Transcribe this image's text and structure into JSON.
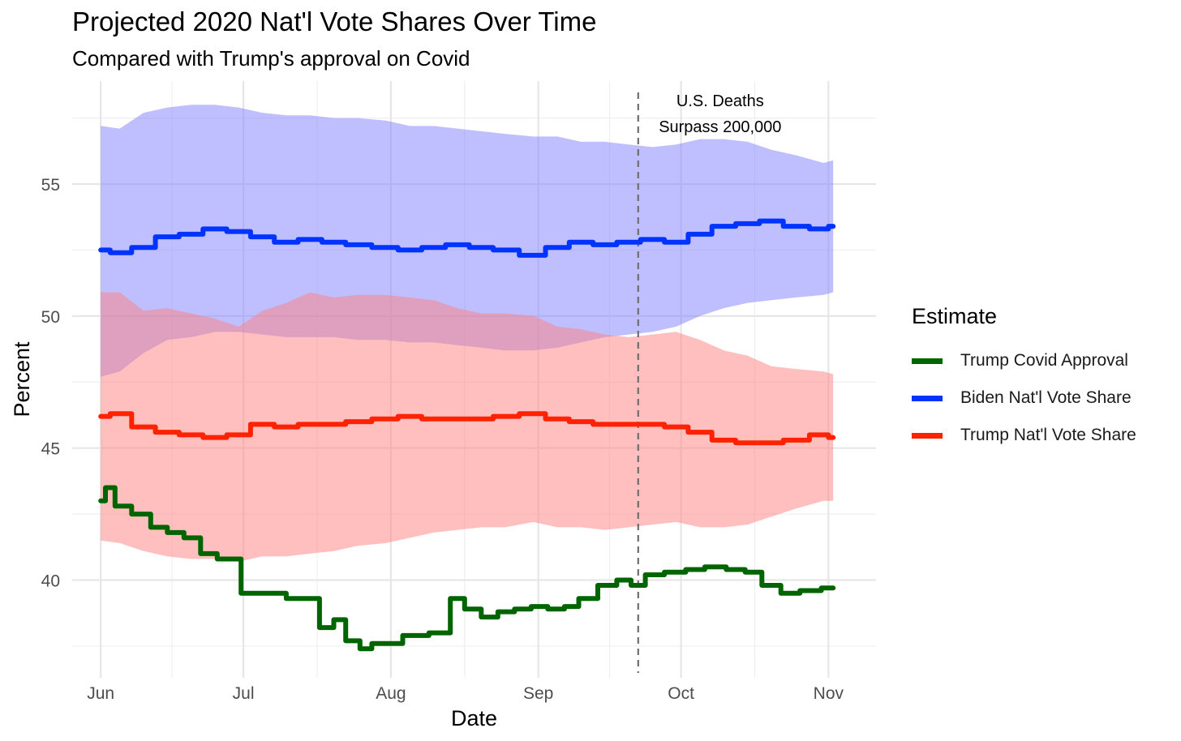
{
  "chart_data": {
    "type": "line",
    "title": "Projected 2020 Nat'l Vote Shares Over Time",
    "subtitle": "Compared with Trump's approval on Covid",
    "xlabel": "Date",
    "ylabel": "Percent",
    "x_ticks": [
      "Jun",
      "Jul",
      "Aug",
      "Sep",
      "Oct",
      "Nov"
    ],
    "x_tick_dates": [
      "2020-06-01",
      "2020-07-01",
      "2020-08-01",
      "2020-09-01",
      "2020-10-01",
      "2020-11-01"
    ],
    "y_ticks": [
      40,
      45,
      50,
      55
    ],
    "ylim": [
      36.3,
      58.9
    ],
    "xlim": [
      "2020-05-26",
      "2020-11-11"
    ],
    "grid": true,
    "legend": {
      "title": "Estimate",
      "position": "right",
      "entries": [
        "Trump Covid Approval",
        "Biden Nat'l Vote Share",
        "Trump Nat'l Vote Share"
      ]
    },
    "annotation": {
      "date": "2020-09-22",
      "lines": [
        "U.S. Deaths",
        "Surpass 200,000"
      ]
    },
    "colors": {
      "covid": "#006400",
      "biden": "#0033ff",
      "trump": "#ff2200",
      "biden_band": "#8080ff",
      "trump_band": "#ff8080"
    },
    "series": [
      {
        "name": "Trump Covid Approval",
        "x": [
          "2020-06-01",
          "2020-06-03",
          "2020-06-05",
          "2020-06-10",
          "2020-06-13",
          "2020-06-17",
          "2020-06-20",
          "2020-06-24",
          "2020-06-27",
          "2020-06-30",
          "2020-07-01",
          "2020-07-08",
          "2020-07-12",
          "2020-07-15",
          "2020-07-19",
          "2020-07-21",
          "2020-07-24",
          "2020-07-27",
          "2020-07-29",
          "2020-08-01",
          "2020-08-06",
          "2020-08-12",
          "2020-08-15",
          "2020-08-18",
          "2020-08-22",
          "2020-08-25",
          "2020-08-29",
          "2020-09-01",
          "2020-09-05",
          "2020-09-08",
          "2020-09-11",
          "2020-09-16",
          "2020-09-19",
          "2020-09-22",
          "2020-09-25",
          "2020-09-30",
          "2020-10-04",
          "2020-10-08",
          "2020-10-13",
          "2020-10-16",
          "2020-10-20",
          "2020-10-24",
          "2020-10-28",
          "2020-11-02"
        ],
        "values": [
          43.0,
          43.5,
          42.8,
          42.5,
          42.0,
          41.8,
          41.6,
          41.0,
          40.8,
          40.8,
          39.5,
          39.5,
          39.3,
          39.3,
          38.2,
          38.5,
          37.7,
          37.4,
          37.6,
          37.6,
          37.9,
          38.0,
          39.3,
          38.9,
          38.6,
          38.8,
          38.9,
          39.0,
          38.9,
          39.0,
          39.3,
          39.8,
          40.0,
          39.8,
          40.2,
          40.3,
          40.4,
          40.5,
          40.4,
          40.3,
          39.8,
          39.5,
          39.6,
          39.7
        ]
      },
      {
        "name": "Biden Nat'l Vote Share",
        "x": [
          "2020-06-01",
          "2020-06-05",
          "2020-06-10",
          "2020-06-15",
          "2020-06-20",
          "2020-06-25",
          "2020-06-30",
          "2020-07-05",
          "2020-07-10",
          "2020-07-15",
          "2020-07-20",
          "2020-07-25",
          "2020-07-31",
          "2020-08-05",
          "2020-08-10",
          "2020-08-15",
          "2020-08-20",
          "2020-08-25",
          "2020-08-31",
          "2020-09-05",
          "2020-09-10",
          "2020-09-15",
          "2020-09-20",
          "2020-09-25",
          "2020-09-30",
          "2020-10-05",
          "2020-10-10",
          "2020-10-15",
          "2020-10-20",
          "2020-10-25",
          "2020-10-31",
          "2020-11-02"
        ],
        "values": [
          52.5,
          52.4,
          52.6,
          53.0,
          53.1,
          53.3,
          53.2,
          53.0,
          52.8,
          52.9,
          52.8,
          52.7,
          52.6,
          52.5,
          52.6,
          52.7,
          52.6,
          52.5,
          52.3,
          52.6,
          52.8,
          52.7,
          52.8,
          52.9,
          52.8,
          53.1,
          53.4,
          53.5,
          53.6,
          53.4,
          53.3,
          53.4
        ]
      },
      {
        "name": "Trump Nat'l Vote Share",
        "x": [
          "2020-06-01",
          "2020-06-05",
          "2020-06-10",
          "2020-06-15",
          "2020-06-20",
          "2020-06-25",
          "2020-06-30",
          "2020-07-05",
          "2020-07-10",
          "2020-07-15",
          "2020-07-20",
          "2020-07-25",
          "2020-07-31",
          "2020-08-05",
          "2020-08-10",
          "2020-08-15",
          "2020-08-20",
          "2020-08-25",
          "2020-08-31",
          "2020-09-05",
          "2020-09-10",
          "2020-09-15",
          "2020-09-20",
          "2020-09-25",
          "2020-09-30",
          "2020-10-05",
          "2020-10-10",
          "2020-10-15",
          "2020-10-20",
          "2020-10-25",
          "2020-10-31",
          "2020-11-02"
        ],
        "values": [
          46.2,
          46.3,
          45.8,
          45.6,
          45.5,
          45.4,
          45.5,
          45.9,
          45.8,
          45.9,
          45.9,
          46.0,
          46.1,
          46.2,
          46.1,
          46.1,
          46.1,
          46.2,
          46.3,
          46.1,
          46.0,
          45.9,
          45.9,
          45.9,
          45.8,
          45.6,
          45.3,
          45.2,
          45.2,
          45.3,
          45.5,
          45.4
        ]
      }
    ],
    "bands": [
      {
        "name": "Biden Nat'l Vote Share",
        "x": [
          "2020-06-01",
          "2020-06-05",
          "2020-06-10",
          "2020-06-15",
          "2020-06-20",
          "2020-06-25",
          "2020-06-30",
          "2020-07-05",
          "2020-07-10",
          "2020-07-15",
          "2020-07-20",
          "2020-07-25",
          "2020-07-31",
          "2020-08-05",
          "2020-08-10",
          "2020-08-15",
          "2020-08-20",
          "2020-08-25",
          "2020-08-31",
          "2020-09-05",
          "2020-09-10",
          "2020-09-15",
          "2020-09-20",
          "2020-09-25",
          "2020-09-30",
          "2020-10-05",
          "2020-10-10",
          "2020-10-15",
          "2020-10-20",
          "2020-10-25",
          "2020-10-31",
          "2020-11-02"
        ],
        "upper": [
          57.2,
          57.1,
          57.7,
          57.9,
          58.0,
          58.0,
          57.9,
          57.7,
          57.6,
          57.6,
          57.5,
          57.5,
          57.4,
          57.2,
          57.2,
          57.1,
          57.0,
          56.9,
          56.8,
          56.8,
          56.6,
          56.6,
          56.5,
          56.4,
          56.5,
          56.7,
          56.7,
          56.6,
          56.3,
          56.1,
          55.8,
          55.9
        ],
        "lower": [
          47.7,
          47.9,
          48.6,
          49.1,
          49.2,
          49.4,
          49.4,
          49.3,
          49.2,
          49.2,
          49.2,
          49.1,
          49.1,
          49.0,
          49.0,
          48.9,
          48.8,
          48.7,
          48.7,
          48.8,
          49.0,
          49.2,
          49.3,
          49.4,
          49.6,
          50.0,
          50.3,
          50.5,
          50.6,
          50.7,
          50.8,
          50.9
        ]
      },
      {
        "name": "Trump Nat'l Vote Share",
        "x": [
          "2020-06-01",
          "2020-06-05",
          "2020-06-10",
          "2020-06-15",
          "2020-06-20",
          "2020-06-25",
          "2020-06-30",
          "2020-07-05",
          "2020-07-10",
          "2020-07-15",
          "2020-07-20",
          "2020-07-25",
          "2020-07-31",
          "2020-08-05",
          "2020-08-10",
          "2020-08-15",
          "2020-08-20",
          "2020-08-25",
          "2020-08-31",
          "2020-09-05",
          "2020-09-10",
          "2020-09-15",
          "2020-09-20",
          "2020-09-25",
          "2020-09-30",
          "2020-10-05",
          "2020-10-10",
          "2020-10-15",
          "2020-10-20",
          "2020-10-25",
          "2020-10-31",
          "2020-11-02"
        ],
        "upper": [
          50.9,
          50.9,
          50.2,
          50.3,
          50.1,
          49.9,
          49.6,
          50.2,
          50.5,
          50.9,
          50.7,
          50.8,
          50.8,
          50.7,
          50.6,
          50.3,
          50.1,
          50.1,
          50.0,
          49.6,
          49.5,
          49.3,
          49.2,
          49.3,
          49.4,
          49.1,
          48.7,
          48.5,
          48.1,
          48.0,
          47.9,
          47.8
        ],
        "lower": [
          41.5,
          41.4,
          41.1,
          40.9,
          40.8,
          40.8,
          40.7,
          40.9,
          40.9,
          41.0,
          41.1,
          41.3,
          41.4,
          41.6,
          41.8,
          41.9,
          42.0,
          42.0,
          42.2,
          42.0,
          42.0,
          41.9,
          42.0,
          42.1,
          42.2,
          42.0,
          42.0,
          42.1,
          42.4,
          42.7,
          43.0,
          43.0
        ]
      }
    ]
  }
}
